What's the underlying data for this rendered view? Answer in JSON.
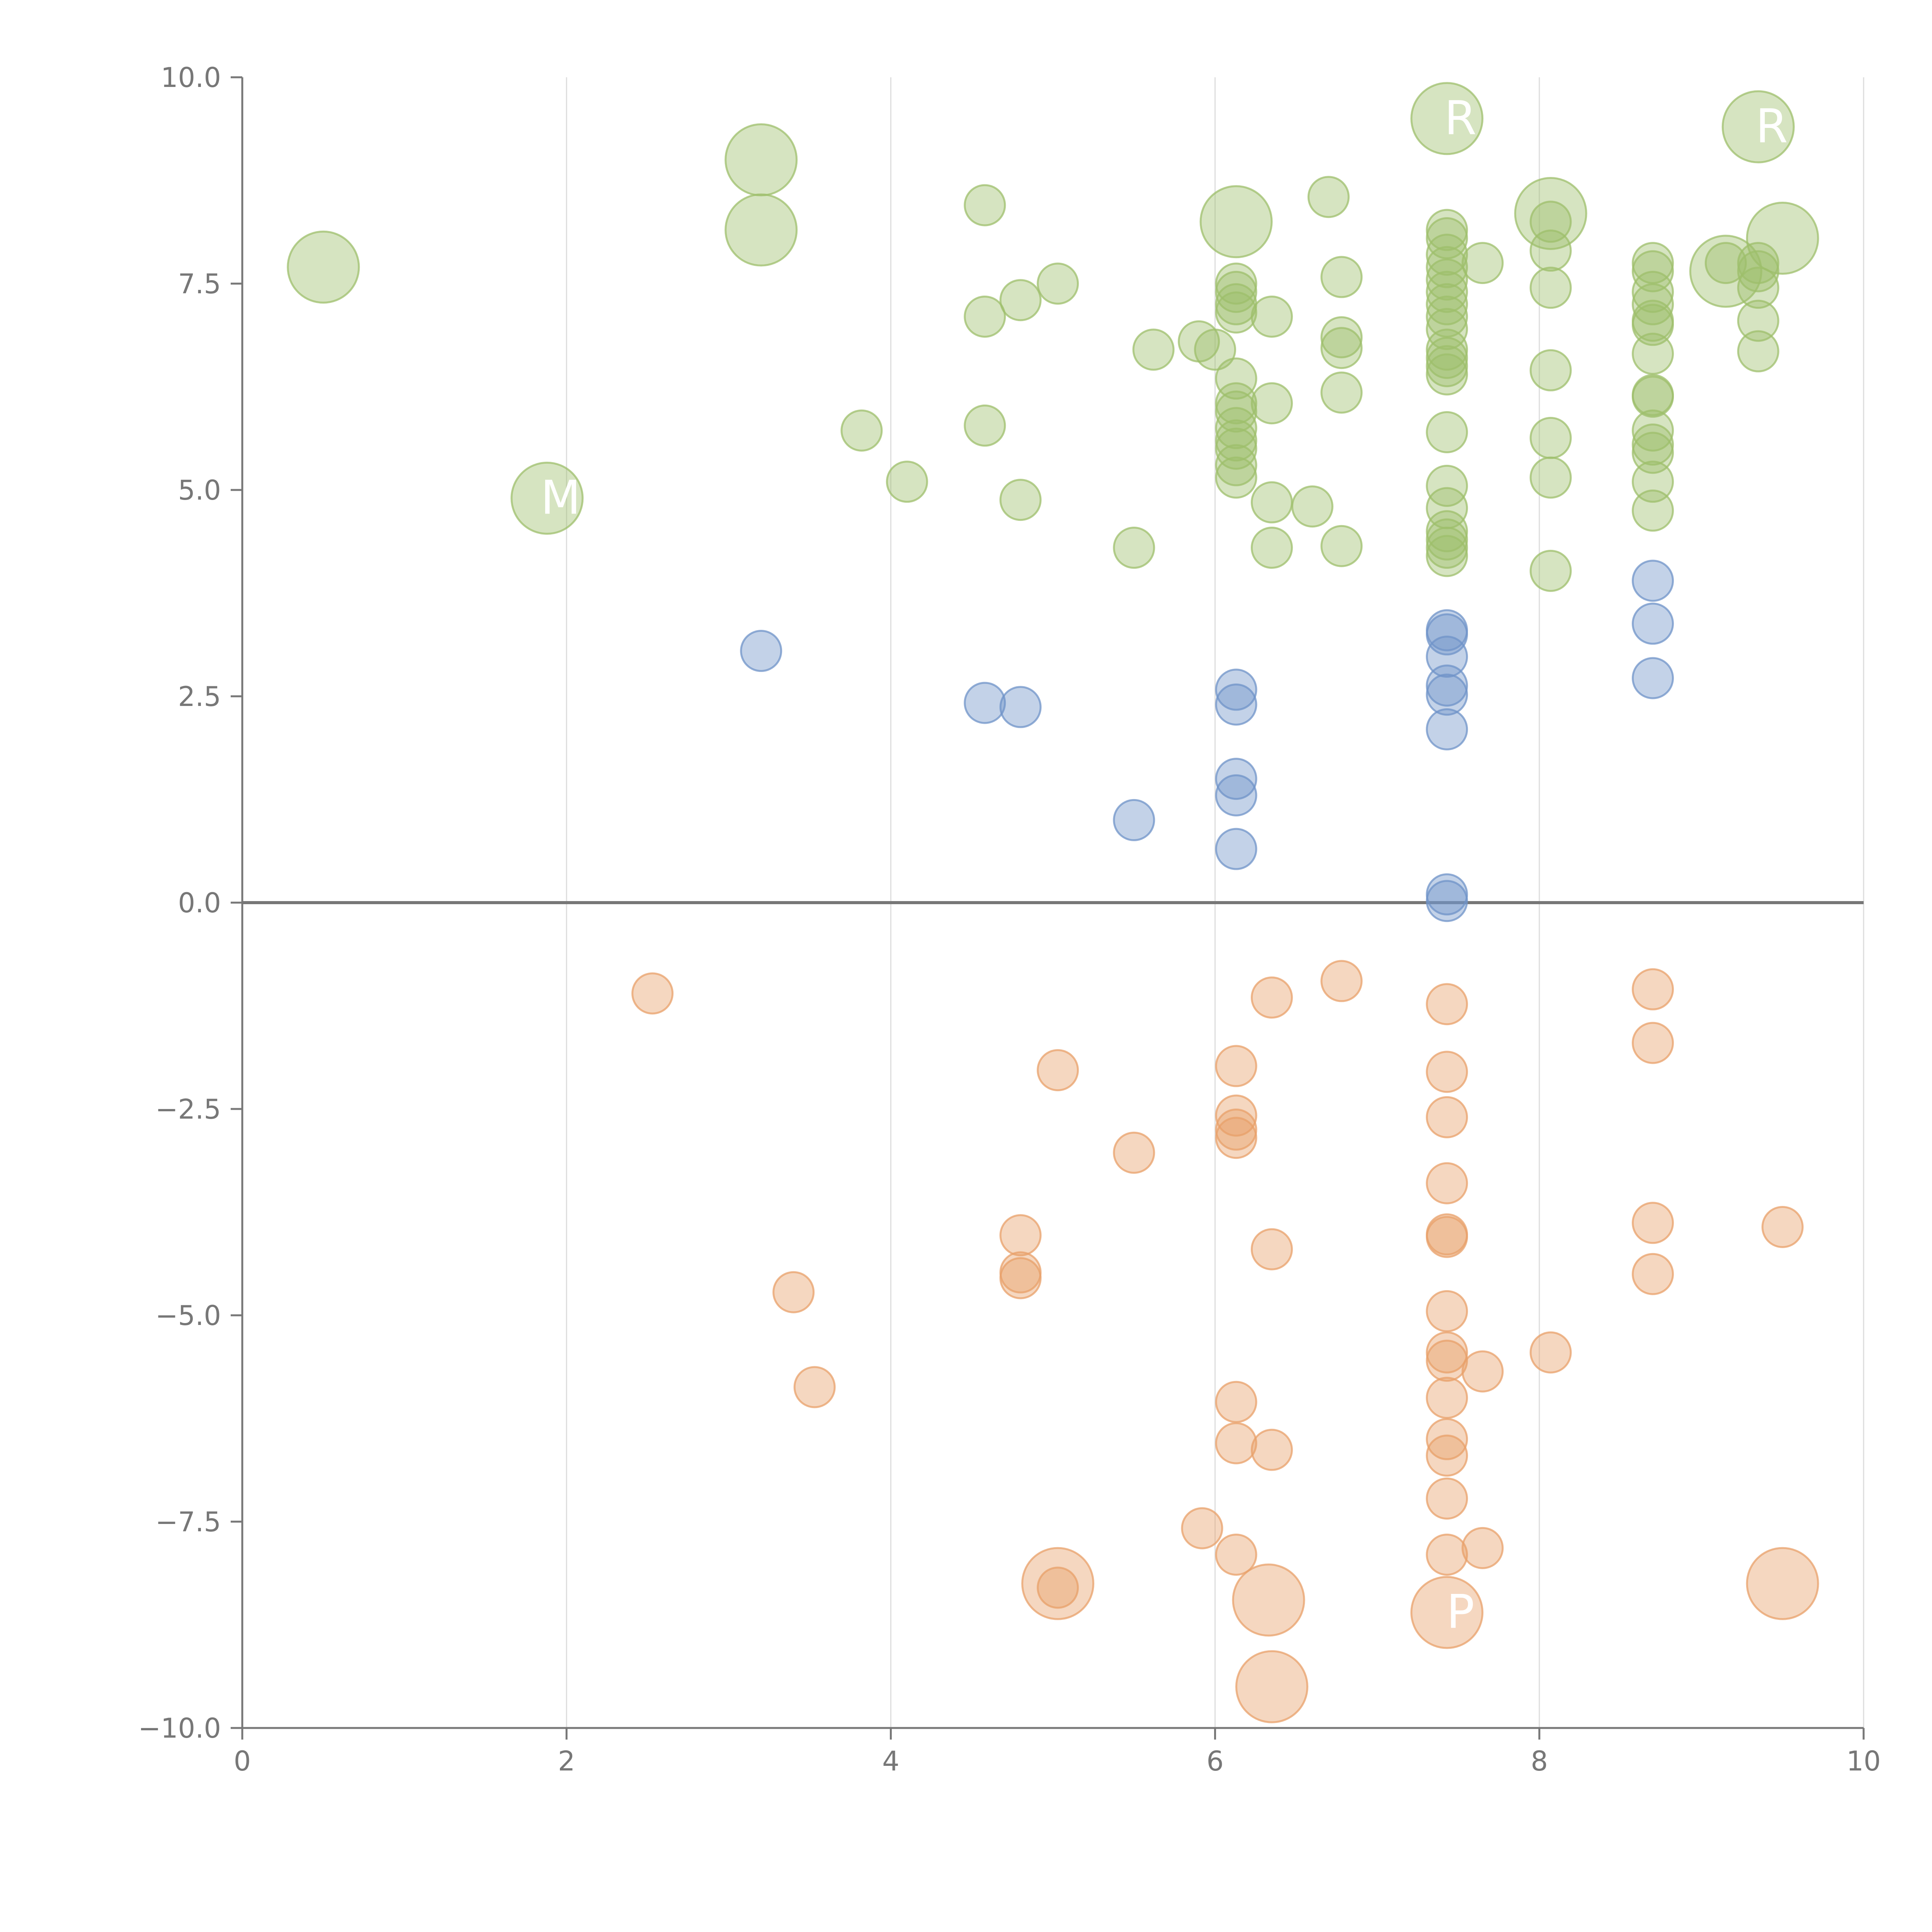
{
  "chart_data": {
    "type": "scatter",
    "title": "",
    "xlabel": "",
    "ylabel": "",
    "xlim": [
      0,
      10
    ],
    "ylim": [
      -10,
      10
    ],
    "x_ticks": [
      0,
      2,
      4,
      6,
      8,
      10
    ],
    "x_tick_labels": [
      "0",
      "2",
      "4",
      "6",
      "8",
      "10"
    ],
    "y_ticks": [
      10,
      7.5,
      5,
      2.5,
      0,
      -2.5,
      -5,
      -7.5,
      -10
    ],
    "y_tick_labels": [
      "10.0",
      "7.5",
      "5.0",
      "2.5",
      "0.0",
      "−2.5",
      "−5.0",
      "−7.5",
      "−10.0"
    ],
    "grid": "vertical",
    "zero_line": true,
    "legend": "none",
    "colors": {
      "green": "#9ebf6b",
      "blue": "#6f93c8",
      "orange": "#e8a06a",
      "axis": "#777777",
      "grid": "#dddddd"
    },
    "series": [
      {
        "name": "green",
        "color": "#9ebf6b",
        "points": [
          [
            0.5,
            7.7,
            2
          ],
          [
            3.2,
            9.0,
            2
          ],
          [
            3.2,
            8.15,
            2
          ],
          [
            1.88,
            4.9,
            2
          ],
          [
            6.13,
            8.25,
            2
          ],
          [
            7.43,
            9.5,
            2
          ],
          [
            8.07,
            8.35,
            2
          ],
          [
            9.35,
            9.4,
            2
          ],
          [
            9.5,
            8.05,
            2
          ],
          [
            9.15,
            7.65,
            2
          ],
          [
            4.58,
            8.45,
            1
          ],
          [
            6.7,
            8.55,
            1
          ],
          [
            4.58,
            7.1,
            1
          ],
          [
            4.8,
            7.3,
            1
          ],
          [
            5.03,
            7.5,
            1
          ],
          [
            3.82,
            5.72,
            1
          ],
          [
            4.1,
            5.1,
            1
          ],
          [
            4.58,
            5.78,
            1
          ],
          [
            4.8,
            4.88,
            1
          ],
          [
            5.5,
            4.3,
            1
          ],
          [
            5.62,
            6.7,
            1
          ],
          [
            5.9,
            6.8,
            1
          ],
          [
            6.0,
            6.7,
            1
          ],
          [
            6.13,
            7.5,
            1
          ],
          [
            6.13,
            7.4,
            1
          ],
          [
            6.13,
            7.25,
            1
          ],
          [
            6.13,
            7.15,
            1
          ],
          [
            6.13,
            6.35,
            1
          ],
          [
            6.13,
            6.05,
            1
          ],
          [
            6.13,
            5.95,
            1
          ],
          [
            6.13,
            5.75,
            1
          ],
          [
            6.13,
            5.6,
            1
          ],
          [
            6.13,
            5.5,
            1
          ],
          [
            6.13,
            5.3,
            1
          ],
          [
            6.13,
            5.15,
            1
          ],
          [
            6.35,
            7.1,
            1
          ],
          [
            6.35,
            6.05,
            1
          ],
          [
            6.35,
            4.85,
            1
          ],
          [
            6.35,
            4.3,
            1
          ],
          [
            6.6,
            4.8,
            1
          ],
          [
            6.78,
            7.58,
            1
          ],
          [
            6.78,
            6.85,
            1
          ],
          [
            6.78,
            6.72,
            1
          ],
          [
            6.78,
            6.18,
            1
          ],
          [
            6.78,
            4.32,
            1
          ],
          [
            7.43,
            8.15,
            1
          ],
          [
            7.43,
            8.05,
            1
          ],
          [
            7.43,
            7.85,
            1
          ],
          [
            7.43,
            7.7,
            1
          ],
          [
            7.43,
            7.55,
            1
          ],
          [
            7.43,
            7.4,
            1
          ],
          [
            7.43,
            7.25,
            1
          ],
          [
            7.43,
            7.1,
            1
          ],
          [
            7.43,
            6.95,
            1
          ],
          [
            7.43,
            6.7,
            1
          ],
          [
            7.43,
            6.6,
            1
          ],
          [
            7.43,
            6.5,
            1
          ],
          [
            7.43,
            6.4,
            1
          ],
          [
            7.43,
            5.7,
            1
          ],
          [
            7.43,
            5.05,
            1
          ],
          [
            7.43,
            4.78,
            1
          ],
          [
            7.43,
            4.5,
            1
          ],
          [
            7.43,
            4.4,
            1
          ],
          [
            7.43,
            4.3,
            1
          ],
          [
            7.43,
            4.2,
            1
          ],
          [
            7.65,
            7.75,
            1
          ],
          [
            8.07,
            8.25,
            1
          ],
          [
            8.07,
            7.9,
            1
          ],
          [
            8.07,
            7.45,
            1
          ],
          [
            8.07,
            6.45,
            1
          ],
          [
            8.07,
            5.63,
            1
          ],
          [
            8.07,
            5.15,
            1
          ],
          [
            8.07,
            4.02,
            1
          ],
          [
            8.7,
            7.75,
            1
          ],
          [
            8.7,
            7.65,
            1
          ],
          [
            8.7,
            7.4,
            1
          ],
          [
            8.7,
            7.25,
            1
          ],
          [
            8.7,
            7.05,
            1
          ],
          [
            8.7,
            7.0,
            1
          ],
          [
            8.7,
            6.65,
            1
          ],
          [
            8.7,
            6.15,
            1
          ],
          [
            8.7,
            6.13,
            1
          ],
          [
            8.7,
            5.72,
            1
          ],
          [
            8.7,
            5.55,
            1
          ],
          [
            8.7,
            5.45,
            1
          ],
          [
            8.7,
            5.1,
            1
          ],
          [
            8.7,
            4.75,
            1
          ],
          [
            9.15,
            7.75,
            1
          ],
          [
            9.35,
            7.75,
            1
          ],
          [
            9.35,
            7.65,
            1
          ],
          [
            9.35,
            7.45,
            1
          ],
          [
            9.35,
            7.05,
            1
          ],
          [
            9.35,
            6.68,
            1
          ]
        ]
      },
      {
        "name": "blue",
        "color": "#6f93c8",
        "points": [
          [
            3.2,
            3.05,
            1
          ],
          [
            4.58,
            2.42,
            1
          ],
          [
            4.8,
            2.37,
            1
          ],
          [
            5.5,
            1.0,
            1
          ],
          [
            6.13,
            2.58,
            1
          ],
          [
            6.13,
            2.4,
            1
          ],
          [
            6.13,
            1.5,
            1
          ],
          [
            6.13,
            1.3,
            1
          ],
          [
            6.13,
            0.65,
            1
          ],
          [
            7.43,
            3.3,
            1
          ],
          [
            7.43,
            3.25,
            1
          ],
          [
            7.43,
            2.98,
            1
          ],
          [
            7.43,
            2.63,
            1
          ],
          [
            7.43,
            2.52,
            1
          ],
          [
            7.43,
            2.1,
            1
          ],
          [
            7.43,
            0.1,
            1
          ],
          [
            7.43,
            0.02,
            1
          ],
          [
            8.7,
            3.9,
            1
          ],
          [
            8.7,
            3.38,
            1
          ],
          [
            8.7,
            2.72,
            1
          ]
        ]
      },
      {
        "name": "orange",
        "color": "#e8a06a",
        "points": [
          [
            2.53,
            -1.1,
            1
          ],
          [
            3.4,
            -4.72,
            1
          ],
          [
            3.53,
            -5.87,
            1
          ],
          [
            4.8,
            -4.03,
            1
          ],
          [
            4.8,
            -4.55,
            1
          ],
          [
            4.8,
            -4.48,
            1
          ],
          [
            5.03,
            -2.03,
            1
          ],
          [
            5.03,
            -8.3,
            1
          ],
          [
            5.5,
            -3.03,
            1
          ],
          [
            5.92,
            -7.58,
            1
          ],
          [
            6.13,
            -1.98,
            1
          ],
          [
            6.13,
            -2.58,
            1
          ],
          [
            6.13,
            -2.75,
            1
          ],
          [
            6.13,
            -2.85,
            1
          ],
          [
            6.13,
            -6.05,
            1
          ],
          [
            6.13,
            -6.55,
            1
          ],
          [
            6.13,
            -7.9,
            1
          ],
          [
            6.35,
            -1.15,
            1
          ],
          [
            6.35,
            -4.2,
            1
          ],
          [
            6.35,
            -6.63,
            1
          ],
          [
            6.78,
            -0.95,
            1
          ],
          [
            7.43,
            -1.23,
            1
          ],
          [
            7.43,
            -2.05,
            1
          ],
          [
            7.43,
            -2.6,
            1
          ],
          [
            7.43,
            -3.4,
            1
          ],
          [
            7.43,
            -4.02,
            1
          ],
          [
            7.43,
            -4.05,
            1
          ],
          [
            7.43,
            -4.95,
            1
          ],
          [
            7.43,
            -5.45,
            1
          ],
          [
            7.43,
            -5.55,
            1
          ],
          [
            7.43,
            -6.0,
            1
          ],
          [
            7.43,
            -6.5,
            1
          ],
          [
            7.43,
            -6.7,
            1
          ],
          [
            7.43,
            -7.22,
            1
          ],
          [
            7.43,
            -7.9,
            1
          ],
          [
            7.65,
            -5.68,
            1
          ],
          [
            7.65,
            -7.82,
            1
          ],
          [
            8.07,
            -5.45,
            1
          ],
          [
            8.7,
            -1.05,
            1
          ],
          [
            8.7,
            -1.7,
            1
          ],
          [
            8.7,
            -3.88,
            1
          ],
          [
            8.7,
            -4.5,
            1
          ],
          [
            9.5,
            -3.93,
            1
          ],
          [
            5.03,
            -8.25,
            2
          ],
          [
            6.33,
            -8.45,
            2
          ],
          [
            7.43,
            -8.6,
            2
          ],
          [
            6.35,
            -9.5,
            2
          ],
          [
            9.5,
            -8.25,
            2
          ]
        ]
      }
    ],
    "annotations": [
      {
        "text": "M",
        "x": 1.88,
        "y": 4.9
      },
      {
        "text": "R",
        "x": 9.35,
        "y": 9.4
      },
      {
        "text": "R",
        "x": 7.43,
        "y": 9.5
      },
      {
        "text": "P",
        "x": 7.43,
        "y": -8.6
      }
    ]
  }
}
